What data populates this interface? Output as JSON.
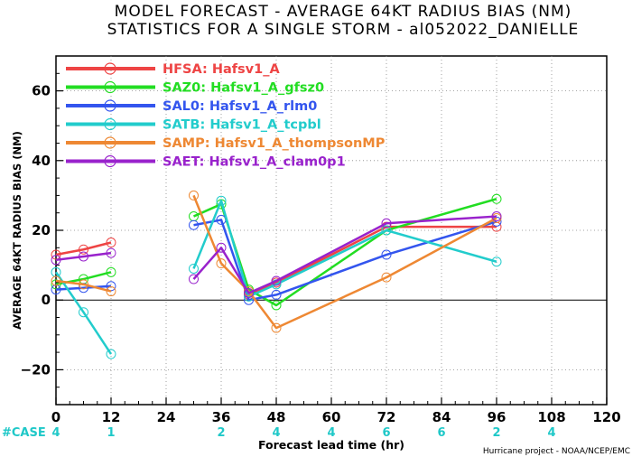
{
  "title_line1": "MODEL FORECAST - AVERAGE 64KT RADIUS BIAS (NM)",
  "title_line2": "STATISTICS FOR A SINGLE STORM - al052022_DANIELLE",
  "credit": "Hurricane project - NOAA/NCEP/EMC",
  "case_label": "#CASE",
  "colors": {
    "case": "#1fc8c8",
    "axis": "#000000",
    "zero_line": "#000000",
    "grid": "#888888"
  },
  "chart_data": {
    "type": "line",
    "xlabel": "Forecast lead time (hr)",
    "ylabel": "AVERAGE 64KT RADIUS BIAS (NM)",
    "xlim": [
      0,
      120
    ],
    "ylim": [
      -30,
      70
    ],
    "xticks": [
      0,
      12,
      24,
      36,
      48,
      60,
      72,
      84,
      96,
      108,
      120
    ],
    "yticks": [
      -20,
      0,
      20,
      40,
      60
    ],
    "grid": true,
    "legend_position": "top-left",
    "cases": [
      {
        "x": 0,
        "n": "4"
      },
      {
        "x": 12,
        "n": "1"
      },
      {
        "x": 36,
        "n": "2"
      },
      {
        "x": 48,
        "n": "4"
      },
      {
        "x": 60,
        "n": "4"
      },
      {
        "x": 72,
        "n": "6"
      },
      {
        "x": 84,
        "n": "6"
      },
      {
        "x": 96,
        "n": "2"
      },
      {
        "x": 108,
        "n": "4"
      }
    ],
    "series": [
      {
        "name": "HFSA: Hafsv1_A",
        "color": "#ee4444",
        "segments": [
          [
            [
              0,
              13
            ],
            [
              6,
              14.5
            ],
            [
              12,
              16.5
            ]
          ],
          [
            [
              42,
              1.5
            ],
            [
              48,
              5
            ],
            [
              72,
              21
            ],
            [
              96,
              21
            ]
          ]
        ]
      },
      {
        "name": "SAZ0: Hafsv1_A_gfsz0",
        "color": "#22dd22",
        "segments": [
          [
            [
              0,
              4.5
            ],
            [
              6,
              6
            ],
            [
              12,
              8
            ]
          ],
          [
            [
              30,
              24
            ],
            [
              36,
              27.5
            ],
            [
              42,
              3
            ],
            [
              48,
              -1.5
            ],
            [
              72,
              20
            ],
            [
              96,
              29
            ]
          ]
        ]
      },
      {
        "name": "SAL0: Hafsv1_A_rlm0",
        "color": "#3355ee",
        "segments": [
          [
            [
              0,
              3
            ],
            [
              6,
              3.5
            ],
            [
              12,
              4
            ]
          ],
          [
            [
              30,
              21.5
            ],
            [
              36,
              23
            ],
            [
              42,
              0
            ],
            [
              48,
              1.5
            ],
            [
              72,
              13
            ],
            [
              96,
              22.5
            ]
          ]
        ]
      },
      {
        "name": "SATB: Hafsv1_A_tcpbl",
        "color": "#22cccc",
        "segments": [
          [
            [
              0,
              8
            ],
            [
              6,
              -3.5
            ],
            [
              12,
              -15.5
            ]
          ],
          [
            [
              30,
              9
            ],
            [
              36,
              28.5
            ],
            [
              42,
              1
            ],
            [
              48,
              4.5
            ],
            [
              72,
              20
            ],
            [
              96,
              11
            ]
          ]
        ]
      },
      {
        "name": "SAMP: Hafsv1_A_thompsonMP",
        "color": "#ee8833",
        "segments": [
          [
            [
              0,
              5.5
            ],
            [
              6,
              4.5
            ],
            [
              12,
              2.5
            ]
          ],
          [
            [
              30,
              30
            ],
            [
              36,
              10.5
            ],
            [
              42,
              2.5
            ],
            [
              48,
              -8
            ],
            [
              72,
              6.5
            ],
            [
              96,
              23.5
            ]
          ]
        ]
      },
      {
        "name": "SAET: Hafsv1_A_clam0p1",
        "color": "#9922cc",
        "segments": [
          [
            [
              0,
              11.5
            ],
            [
              6,
              12.5
            ],
            [
              12,
              13.5
            ]
          ],
          [
            [
              30,
              6
            ],
            [
              36,
              15
            ],
            [
              42,
              2
            ],
            [
              48,
              5.5
            ],
            [
              72,
              22
            ],
            [
              96,
              24
            ]
          ]
        ]
      }
    ]
  }
}
